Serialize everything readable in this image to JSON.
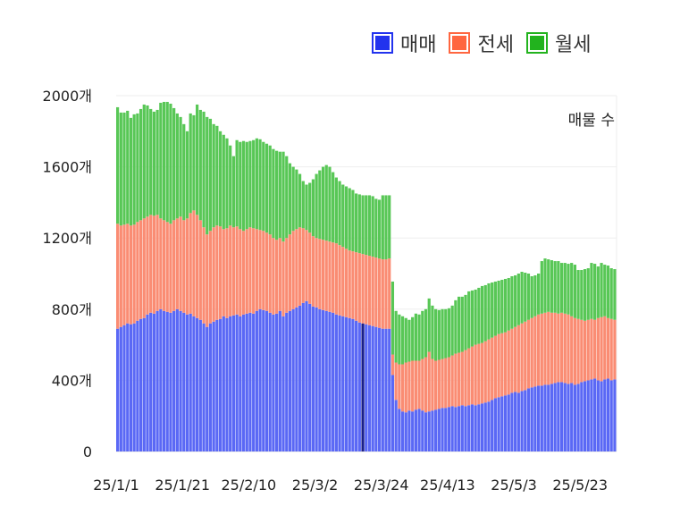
{
  "chart_data": {
    "type": "bar",
    "stacked": true,
    "annotation": "매물 수",
    "y_ticks": [
      "0",
      "400개",
      "800개",
      "1200개",
      "1600개",
      "2000개"
    ],
    "ylim": [
      0,
      2000
    ],
    "x_tick_labels": [
      "25/1/1",
      "25/1/21",
      "25/2/10",
      "25/3/2",
      "25/3/24",
      "25/4/13",
      "25/5/3",
      "25/5/23"
    ],
    "grid": "horizontal",
    "legend_position": "top-right",
    "highlighted_bar": {
      "series": "매매",
      "bar_number": 75
    },
    "series": [
      {
        "name": "매매",
        "color": "#5a68f5",
        "legend_color": "#2233ee",
        "highlight_color": "#1a1f8a",
        "values": [
          690,
          700,
          710,
          720,
          715,
          720,
          735,
          745,
          750,
          770,
          780,
          775,
          790,
          800,
          790,
          785,
          780,
          790,
          800,
          790,
          780,
          770,
          775,
          760,
          750,
          740,
          720,
          700,
          720,
          730,
          740,
          745,
          760,
          750,
          760,
          765,
          770,
          760,
          770,
          775,
          780,
          775,
          790,
          800,
          795,
          790,
          780,
          770,
          775,
          790,
          760,
          780,
          790,
          800,
          810,
          820,
          835,
          845,
          830,
          815,
          810,
          800,
          795,
          790,
          785,
          780,
          770,
          765,
          760,
          755,
          750,
          745,
          735,
          725,
          720,
          715,
          710,
          705,
          700,
          695,
          690,
          690,
          690,
          430,
          290,
          240,
          225,
          220,
          230,
          225,
          235,
          240,
          230,
          220,
          225,
          230,
          235,
          240,
          245,
          245,
          250,
          255,
          250,
          255,
          260,
          255,
          260,
          265,
          260,
          265,
          270,
          275,
          280,
          290,
          300,
          305,
          310,
          315,
          320,
          330,
          335,
          330,
          340,
          345,
          355,
          360,
          365,
          370,
          370,
          375,
          375,
          380,
          385,
          390,
          390,
          385,
          380,
          385,
          375,
          380,
          390,
          395,
          400,
          405,
          410,
          400,
          395,
          405,
          410,
          400,
          405
        ]
      },
      {
        "name": "전세",
        "color": "#fa8c73",
        "legend_color": "#ff6640",
        "values": [
          590,
          570,
          565,
          560,
          555,
          555,
          555,
          555,
          560,
          550,
          550,
          550,
          540,
          510,
          510,
          505,
          500,
          510,
          510,
          530,
          520,
          540,
          565,
          595,
          580,
          560,
          540,
          520,
          520,
          530,
          530,
          520,
          490,
          505,
          510,
          495,
          495,
          490,
          470,
          475,
          480,
          480,
          460,
          445,
          445,
          440,
          440,
          430,
          415,
          410,
          420,
          420,
          430,
          440,
          440,
          440,
          420,
          400,
          400,
          395,
          390,
          395,
          395,
          395,
          395,
          395,
          400,
          395,
          390,
          385,
          380,
          380,
          385,
          390,
          390,
          390,
          390,
          390,
          390,
          390,
          390,
          390,
          395,
          115,
          210,
          250,
          265,
          280,
          275,
          285,
          275,
          270,
          290,
          310,
          335,
          290,
          275,
          275,
          275,
          280,
          280,
          285,
          300,
          300,
          300,
          315,
          320,
          325,
          340,
          340,
          340,
          345,
          350,
          350,
          350,
          355,
          355,
          355,
          360,
          360,
          365,
          380,
          380,
          385,
          385,
          390,
          395,
          400,
          405,
          405,
          410,
          400,
          395,
          385,
          390,
          390,
          390,
          375,
          375,
          365,
          350,
          340,
          340,
          340,
          330,
          350,
          360,
          355,
          340,
          345,
          335
        ]
      },
      {
        "name": "월세",
        "color": "#58c756",
        "legend_color": "#22b31e",
        "values": [
          655,
          635,
          630,
          635,
          605,
          620,
          610,
          625,
          640,
          625,
          595,
          585,
          590,
          650,
          665,
          675,
          675,
          630,
          590,
          560,
          540,
          490,
          560,
          535,
          620,
          620,
          650,
          660,
          630,
          580,
          560,
          535,
          530,
          505,
          450,
          400,
          485,
          490,
          505,
          490,
          485,
          495,
          510,
          510,
          500,
          500,
          500,
          500,
          500,
          485,
          505,
          460,
          400,
          360,
          335,
          300,
          265,
          255,
          280,
          320,
          360,
          385,
          410,
          425,
          420,
          395,
          370,
          360,
          350,
          350,
          350,
          345,
          330,
          330,
          330,
          335,
          340,
          340,
          330,
          330,
          360,
          360,
          355,
          410,
          290,
          280,
          270,
          250,
          235,
          245,
          265,
          260,
          270,
          270,
          300,
          300,
          290,
          280,
          280,
          275,
          275,
          280,
          300,
          315,
          310,
          310,
          320,
          315,
          310,
          315,
          320,
          315,
          315,
          310,
          305,
          300,
          300,
          300,
          295,
          295,
          290,
          290,
          290,
          275,
          260,
          235,
          230,
          230,
          295,
          305,
          295,
          295,
          290,
          295,
          280,
          285,
          285,
          300,
          300,
          275,
          280,
          290,
          290,
          315,
          315,
          290,
          305,
          290,
          295,
          285,
          285
        ]
      }
    ]
  }
}
